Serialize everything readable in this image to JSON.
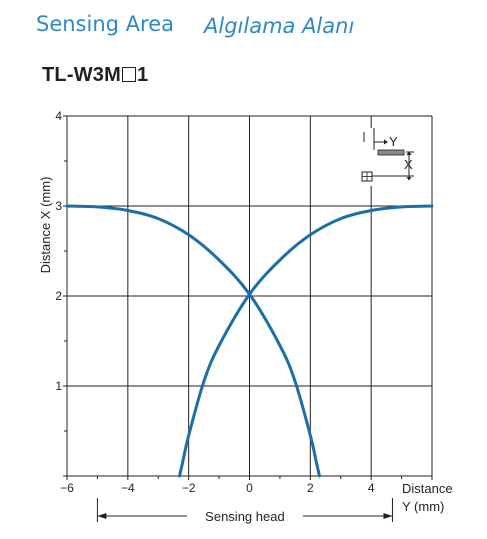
{
  "header": {
    "title_en": "Sensing Area",
    "title_tr": "Algılama Alanı"
  },
  "model": {
    "prefix": "TL-W3M",
    "suffix": "1"
  },
  "colors": {
    "curve": "#1a6fa8",
    "header": "#2e8bc0",
    "grid": "#231f20"
  },
  "chart_data": {
    "type": "line",
    "xlabel_line1": "Distance",
    "xlabel_line2": "Y (mm)",
    "ylabel": "Distance X (mm)",
    "xlim": [
      -6,
      6
    ],
    "ylim": [
      0,
      4
    ],
    "x_ticks": [
      -6,
      -4,
      -2,
      0,
      2,
      4
    ],
    "x_tick_labels": [
      "−6",
      "−4",
      "−2",
      "0",
      "2",
      "4"
    ],
    "y_ticks": [
      1,
      2,
      3,
      4
    ],
    "y_tick_labels": [
      "1",
      "2",
      "3",
      "4"
    ],
    "grid": true,
    "sensing_head_label": "Sensing head",
    "sensing_head_range": [
      -5,
      4.7
    ],
    "inset_labels": {
      "y": "Y",
      "x": "X"
    },
    "series": [
      {
        "x": [
          -6,
          -5,
          -4,
          -3,
          -2,
          -1,
          0,
          1,
          1.5,
          2,
          2.2,
          2.3
        ],
        "y": [
          3,
          2.99,
          2.95,
          2.86,
          2.68,
          2.4,
          2.02,
          1.45,
          1.05,
          0.45,
          0.15,
          0
        ]
      },
      {
        "x": [
          6,
          5,
          4,
          3,
          2,
          1,
          0,
          -1,
          -1.5,
          -2,
          -2.2,
          -2.3
        ],
        "y": [
          3,
          2.99,
          2.95,
          2.86,
          2.68,
          2.4,
          2.02,
          1.45,
          1.05,
          0.45,
          0.15,
          0
        ]
      }
    ]
  }
}
